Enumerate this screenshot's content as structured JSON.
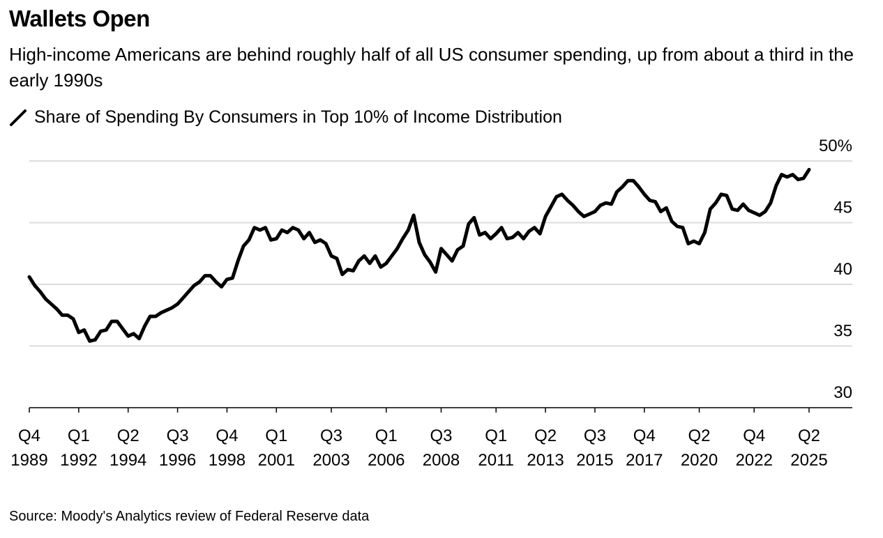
{
  "chart_data": {
    "type": "line",
    "title": "Wallets Open",
    "subtitle": "High-income Americans are behind roughly half of all US consumer spending, up from about a third in the early 1990s",
    "legend": [
      {
        "name": "Share of Spending By Consumers in Top 10% of Income Distribution",
        "icon": "slash-line-icon",
        "color": "#000000"
      }
    ],
    "legend_placement": "top-left",
    "source": "Source: Moody's Analytics review of Federal Reserve data",
    "xlabel": "",
    "ylabel": "",
    "x_start": "Q4 1989",
    "x_frequency": "quarterly",
    "ylim": [
      30,
      50
    ],
    "yticks": [
      {
        "value": 50,
        "label": "50%"
      },
      {
        "value": 45,
        "label": "45"
      },
      {
        "value": 40,
        "label": "40"
      },
      {
        "value": 35,
        "label": "35"
      },
      {
        "value": 30,
        "label": "30"
      }
    ],
    "xticks": [
      {
        "q": 0,
        "line1": "Q4",
        "line2": "1989"
      },
      {
        "q": 9,
        "line1": "Q1",
        "line2": "1992"
      },
      {
        "q": 18,
        "line1": "Q2",
        "line2": "1994"
      },
      {
        "q": 27,
        "line1": "Q3",
        "line2": "1996"
      },
      {
        "q": 36,
        "line1": "Q4",
        "line2": "1998"
      },
      {
        "q": 45,
        "line1": "Q1",
        "line2": "2001"
      },
      {
        "q": 55,
        "line1": "Q3",
        "line2": "2003"
      },
      {
        "q": 65,
        "line1": "Q1",
        "line2": "2006"
      },
      {
        "q": 75,
        "line1": "Q3",
        "line2": "2008"
      },
      {
        "q": 85,
        "line1": "Q1",
        "line2": "2011"
      },
      {
        "q": 94,
        "line1": "Q2",
        "line2": "2013"
      },
      {
        "q": 103,
        "line1": "Q3",
        "line2": "2015"
      },
      {
        "q": 112,
        "line1": "Q4",
        "line2": "2017"
      },
      {
        "q": 122,
        "line1": "Q2",
        "line2": "2020"
      },
      {
        "q": 132,
        "line1": "Q4",
        "line2": "2022"
      },
      {
        "q": 142,
        "line1": "Q2",
        "line2": "2025"
      }
    ],
    "grid": true,
    "series": [
      {
        "name": "Share of Spending By Consumers in Top 10% of Income Distribution",
        "values": [
          40.6,
          39.9,
          39.4,
          38.8,
          38.4,
          38.0,
          37.5,
          37.5,
          37.2,
          36.1,
          36.3,
          35.4,
          35.5,
          36.2,
          36.3,
          37.0,
          37.0,
          36.4,
          35.8,
          36.0,
          35.6,
          36.6,
          37.4,
          37.4,
          37.7,
          37.9,
          38.1,
          38.4,
          38.9,
          39.4,
          39.9,
          40.2,
          40.7,
          40.7,
          40.2,
          39.8,
          40.4,
          40.5,
          41.9,
          43.1,
          43.6,
          44.6,
          44.4,
          44.6,
          43.6,
          43.7,
          44.4,
          44.2,
          44.6,
          44.4,
          43.7,
          44.2,
          43.4,
          43.6,
          43.3,
          42.3,
          42.1,
          40.8,
          41.2,
          41.1,
          41.9,
          42.3,
          41.7,
          42.3,
          41.4,
          41.7,
          42.3,
          42.9,
          43.7,
          44.4,
          45.6,
          43.4,
          42.4,
          41.8,
          41.0,
          42.9,
          42.4,
          41.9,
          42.8,
          43.1,
          44.9,
          45.4,
          44.0,
          44.2,
          43.7,
          44.1,
          44.6,
          43.7,
          43.8,
          44.2,
          43.7,
          44.3,
          44.6,
          44.1,
          45.5,
          46.3,
          47.1,
          47.3,
          46.8,
          46.4,
          45.9,
          45.5,
          45.7,
          45.9,
          46.4,
          46.6,
          46.5,
          47.5,
          47.9,
          48.4,
          48.4,
          47.9,
          47.3,
          46.8,
          46.7,
          45.9,
          46.2,
          45.1,
          44.7,
          44.6,
          43.3,
          43.5,
          43.3,
          44.2,
          46.1,
          46.6,
          47.3,
          47.2,
          46.1,
          46.0,
          46.5,
          46.0,
          45.8,
          45.6,
          45.9,
          46.6,
          48.0,
          48.9,
          48.7,
          48.9,
          48.5,
          48.6,
          49.3
        ]
      }
    ]
  }
}
